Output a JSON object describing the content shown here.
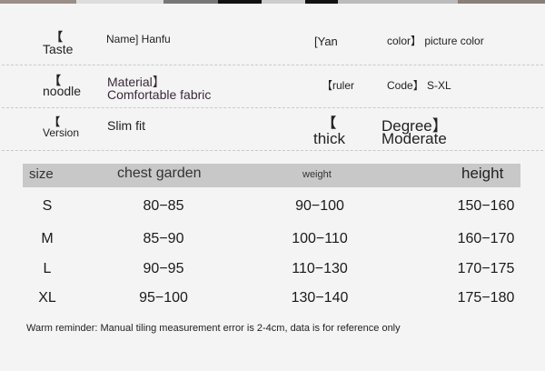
{
  "attributes": [
    {
      "label_a": "【",
      "label_b": "Taste",
      "value": "Name] Hanfu"
    },
    {
      "label": "[Yan",
      "value": "color】 picture color"
    },
    {
      "label_a": "【",
      "label_b": "noodle",
      "value_a": "Material】",
      "value_b": "Comfortable fabric"
    },
    {
      "label": "【ruler",
      "value": "Code】 S-XL"
    },
    {
      "label_a": "【",
      "label_b": "Version",
      "value": "Slim fit"
    },
    {
      "label_a": "【",
      "label_b": "thick",
      "value_a": "Degree】",
      "value_b": "Moderate"
    }
  ],
  "table": {
    "headers": [
      "size",
      "chest garden",
      "weight",
      "height"
    ],
    "rows": [
      [
        "S",
        "80−85",
        "90−100",
        "150−160"
      ],
      [
        "M",
        "85−90",
        "100−110",
        "160−170"
      ],
      [
        "L",
        "90−95",
        "110−130",
        "170−175"
      ],
      [
        "XL",
        "95−100",
        "130−140",
        "175−180"
      ]
    ]
  },
  "note": "Warm reminder: Manual tiling measurement error is 2-4cm, data is for reference only"
}
